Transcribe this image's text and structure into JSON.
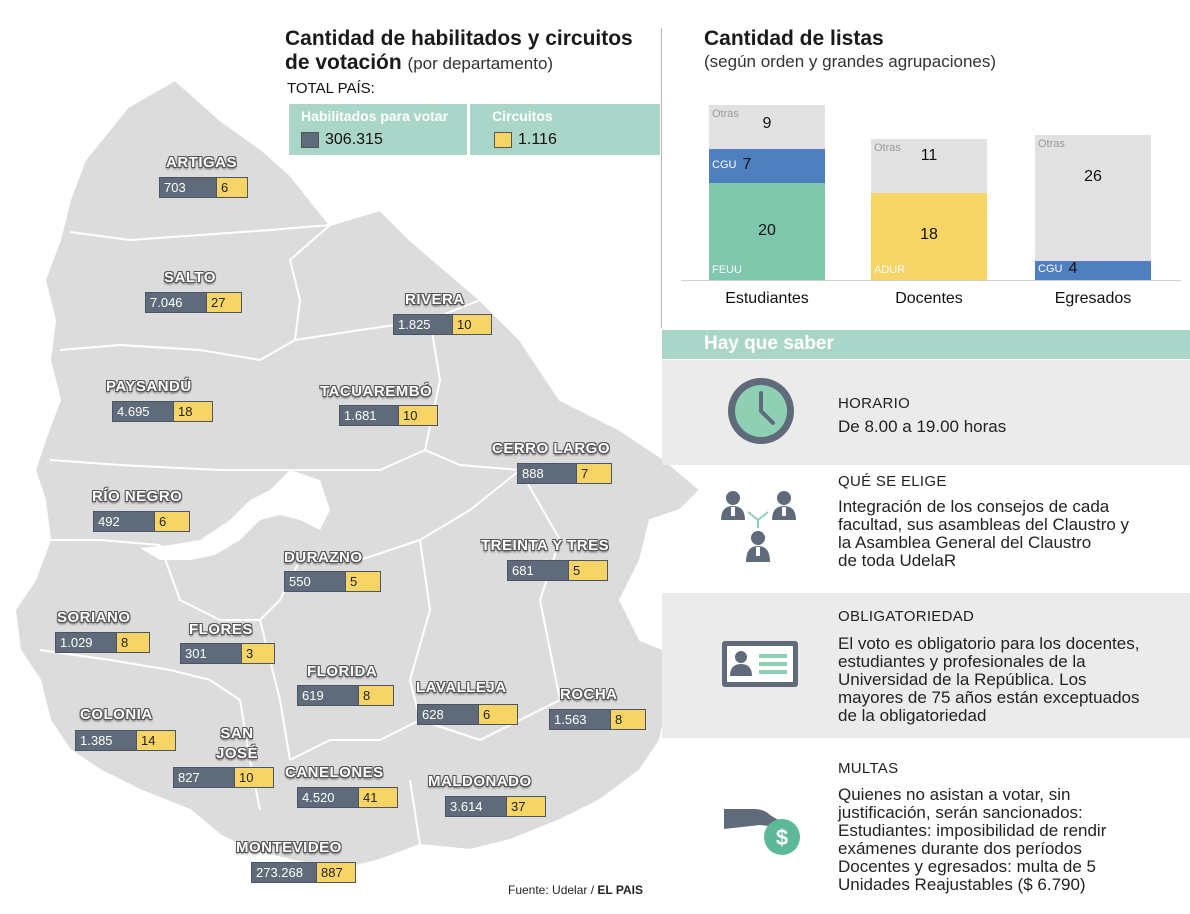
{
  "left_title": {
    "line1": "Cantidad de habilitados y circuitos",
    "line2": "de votación",
    "subtitle": "(por departamento)"
  },
  "totals": {
    "label": "TOTAL PAÍS:",
    "habilitados_label": "Habilitados para votar",
    "habilitados_value": "306.315",
    "circuitos_label": "Circuitos",
    "circuitos_value": "1.116"
  },
  "departments": [
    {
      "name": "ARTIGAS",
      "habilitados": "703",
      "circuitos": "6"
    },
    {
      "name": "SALTO",
      "habilitados": "7.046",
      "circuitos": "27"
    },
    {
      "name": "RIVERA",
      "habilitados": "1.825",
      "circuitos": "10"
    },
    {
      "name": "PAYSANDÚ",
      "habilitados": "4.695",
      "circuitos": "18"
    },
    {
      "name": "TACUAREMBÓ",
      "habilitados": "1.681",
      "circuitos": "10"
    },
    {
      "name": "CERRO LARGO",
      "habilitados": "888",
      "circuitos": "7"
    },
    {
      "name": "RÍO NEGRO",
      "habilitados": "492",
      "circuitos": "6"
    },
    {
      "name": "TREINTA Y TRES",
      "habilitados": "681",
      "circuitos": "5"
    },
    {
      "name": "DURAZNO",
      "habilitados": "550",
      "circuitos": "5"
    },
    {
      "name": "SORIANO",
      "habilitados": "1.029",
      "circuitos": "8"
    },
    {
      "name": "FLORES",
      "habilitados": "301",
      "circuitos": "3"
    },
    {
      "name": "FLORIDA",
      "habilitados": "619",
      "circuitos": "8"
    },
    {
      "name": "LAVALLEJA",
      "habilitados": "628",
      "circuitos": "6"
    },
    {
      "name": "ROCHA",
      "habilitados": "1.563",
      "circuitos": "8"
    },
    {
      "name": "COLONIA",
      "habilitados": "1.385",
      "circuitos": "14"
    },
    {
      "name": "SAN JOSÉ",
      "habilitados": "827",
      "circuitos": "10"
    },
    {
      "name": "CANELONES",
      "habilitados": "4.520",
      "circuitos": "41"
    },
    {
      "name": "MALDONADO",
      "habilitados": "3.614",
      "circuitos": "37"
    },
    {
      "name": "MONTEVIDEO",
      "habilitados": "273.268",
      "circuitos": "887"
    }
  ],
  "chart_data": {
    "type": "bar",
    "stacked": true,
    "title": "Cantidad de listas",
    "subtitle": "(según orden y grandes agrupaciones)",
    "categories": [
      "Estudiantes",
      "Docentes",
      "Egresados"
    ],
    "stacks": [
      {
        "category": "Estudiantes",
        "segments": [
          {
            "name": "FEUU",
            "value": 20,
            "color": "#7fc7ad"
          },
          {
            "name": "CGU",
            "value": 7,
            "color": "#4f7fbe"
          },
          {
            "name": "Otras",
            "value": 9,
            "color": "#e1e1e1"
          }
        ]
      },
      {
        "category": "Docentes",
        "segments": [
          {
            "name": "ADUR",
            "value": 18,
            "color": "#f6d465"
          },
          {
            "name": "Otras",
            "value": 11,
            "color": "#e1e1e1"
          }
        ]
      },
      {
        "category": "Egresados",
        "segments": [
          {
            "name": "CGU",
            "value": 4,
            "color": "#4f7fbe"
          },
          {
            "name": "Otras",
            "value": 26,
            "color": "#e1e1e1"
          }
        ]
      }
    ]
  },
  "hay_que_saber": {
    "heading": "Hay que saber",
    "items": [
      {
        "title": "HORARIO",
        "icon": "clock-icon",
        "lines": [
          "De 8.00 a 19.00 horas"
        ]
      },
      {
        "title": "QUÉ SE ELIGE",
        "icon": "people-network-icon",
        "lines": [
          "Integración de los consejos de cada",
          "facultad, sus asambleas del Claustro y",
          "la Asamblea General del Claustro",
          "de toda UdelaR"
        ]
      },
      {
        "title": "OBLIGATORIEDAD",
        "icon": "id-card-icon",
        "lines": [
          "El voto es obligatorio para los docentes,",
          "estudiantes y profesionales de la",
          "Universidad de la República. Los",
          "mayores de 75 años están exceptuados",
          "de la obligatoriedad"
        ]
      },
      {
        "title": "MULTAS",
        "icon": "money-hand-icon",
        "lines": [
          "Quienes no asistan a votar, sin",
          "justificación, serán sancionados:",
          "Estudiantes: imposibilidad de rendir",
          "exámenes durante dos períodos",
          "Docentes y egresados: multa de 5",
          "Unidades Reajustables ($ 6.790)"
        ]
      }
    ]
  },
  "source": {
    "prefix": "Fuente: Udelar / ",
    "brand": "EL PAIS"
  },
  "colors": {
    "habilitados": "#5f6b7a",
    "circuitos": "#f6d465",
    "accent": "#a9d6c8",
    "map": "#dcdcdc"
  }
}
